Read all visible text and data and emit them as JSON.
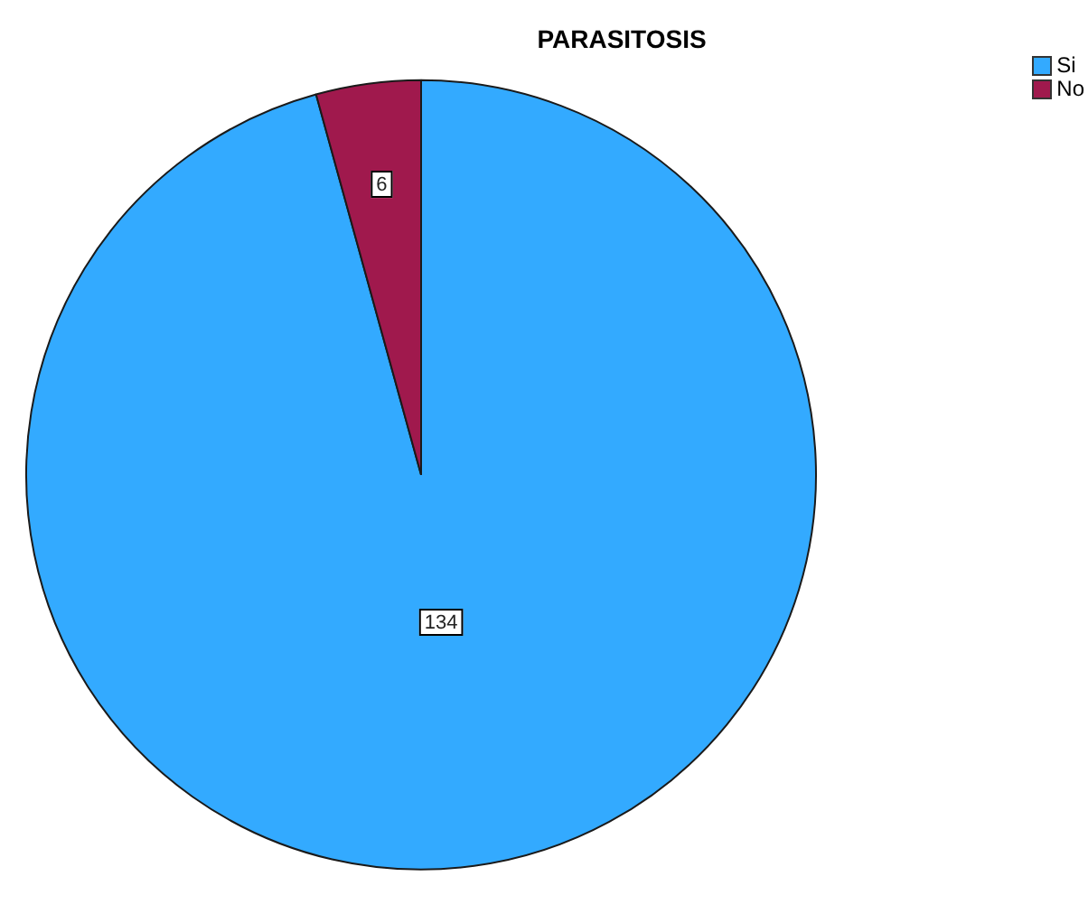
{
  "chart_data": {
    "type": "pie",
    "title": "PARASITOSIS",
    "categories": [
      "Si",
      "No"
    ],
    "values": [
      134,
      6
    ],
    "colors": [
      "#33aaff",
      "#a0194d"
    ],
    "legend": "top right",
    "data_labels": true
  }
}
